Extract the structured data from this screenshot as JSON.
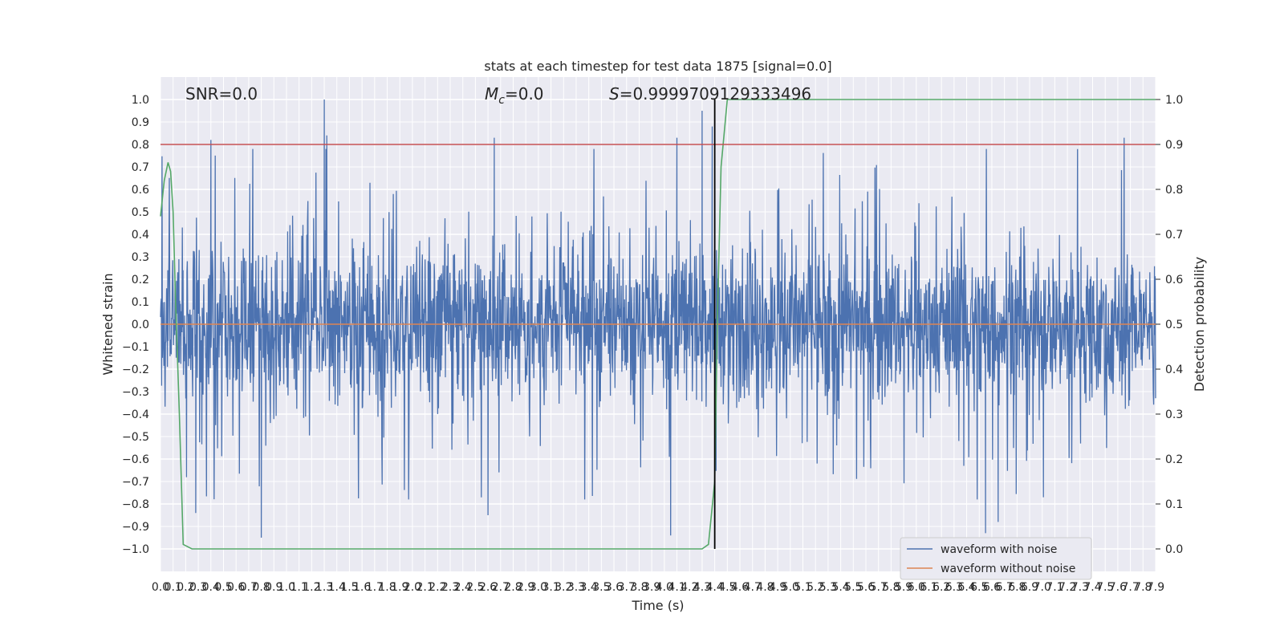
{
  "chart_data": {
    "type": "line",
    "title": "stats at each timestep for test data 1875 [signal=0.0]",
    "xlabel": "Time (s)",
    "ylabel": "Whitened strain",
    "y2label": "Detection probability",
    "xlim": [
      0.0,
      7.9
    ],
    "ylim": [
      -1.0,
      1.0
    ],
    "y2lim": [
      0.0,
      1.0
    ],
    "grid": true,
    "legend_position": "lower right",
    "annotations": {
      "snr": "SNR=0.0",
      "mc_symbol": "M",
      "mc_sub": "c",
      "mc_value": "=0.0",
      "s_symbol": "S",
      "s_value": "=0.9999709129333496"
    },
    "threshold_y2": 0.9,
    "event_marker_x": 4.4,
    "series": [
      {
        "name": "waveform with noise",
        "axis": "left",
        "description": "dense whitened noise, mostly within about -0.6 to 0.7 with spikes",
        "peaks": [
          [
            0.4,
            0.82
          ],
          [
            1.3,
            1.0
          ],
          [
            1.32,
            0.84
          ],
          [
            2.65,
            0.83
          ],
          [
            4.1,
            0.83
          ],
          [
            4.3,
            0.95
          ],
          [
            4.38,
            0.88
          ],
          [
            7.65,
            0.83
          ]
        ],
        "troughs": [
          [
            0.8,
            -0.95
          ],
          [
            4.05,
            -0.94
          ],
          [
            6.55,
            -0.93
          ],
          [
            6.65,
            -0.88
          ],
          [
            0.28,
            -0.84
          ],
          [
            2.6,
            -0.85
          ]
        ]
      },
      {
        "name": "waveform without noise",
        "axis": "left",
        "values": "flat at 0.0 for all t"
      },
      {
        "axis": "right",
        "x": [
          0.0,
          0.03,
          0.06,
          0.08,
          0.1,
          0.12,
          0.15,
          0.18,
          0.25,
          0.5,
          0.7,
          0.75,
          1.0,
          2.0,
          3.0,
          4.0,
          4.3,
          4.35,
          4.4,
          4.42,
          4.45,
          4.5,
          5.0,
          6.0,
          7.0,
          7.9
        ],
        "values": [
          0.74,
          0.82,
          0.86,
          0.84,
          0.75,
          0.55,
          0.3,
          0.01,
          0.0,
          0.0,
          0.0,
          0.0,
          0.0,
          0.0,
          0.0,
          0.0,
          0.0,
          0.01,
          0.15,
          0.5,
          0.85,
          1.0,
          1.0,
          1.0,
          1.0,
          1.0
        ]
      }
    ]
  },
  "colors": {
    "noisy": "#4c72b0",
    "clean": "#dd8452",
    "probability": "#55a868",
    "threshold": "#c44e52",
    "marker": "#000000",
    "axes_bg": "#eaeaf2"
  }
}
